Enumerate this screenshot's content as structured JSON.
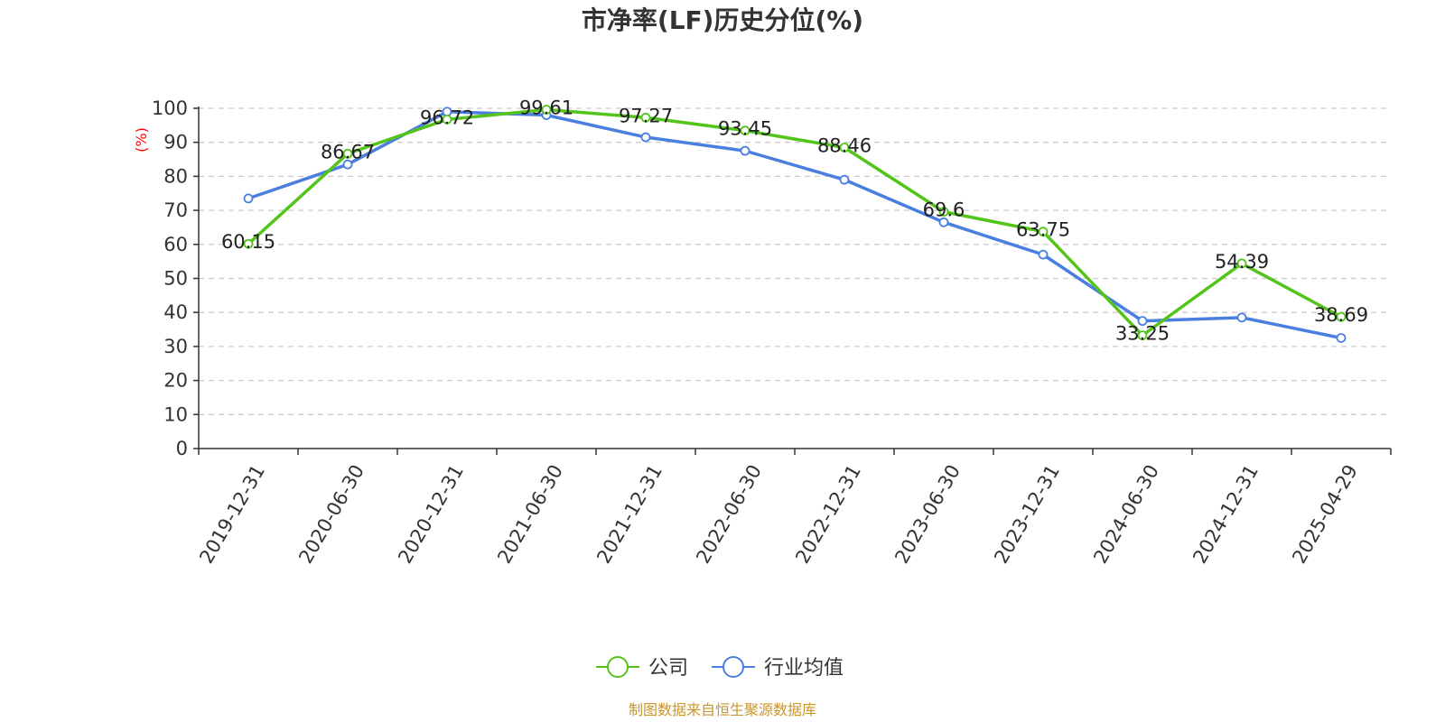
{
  "colors": {
    "company": "#52c41a",
    "industry": "#4a7fe0",
    "grid": "#cccccc",
    "axis": "#333333",
    "ylabel": "#ff0000",
    "source": "#c8962a"
  },
  "source_text": "制图数据来自恒生聚源数据库",
  "chart_data": {
    "type": "line",
    "title": "市净率(LF)历史分位(%)",
    "ylabel": "(%)",
    "xlabel": "",
    "ylim": [
      0,
      100
    ],
    "yticks": [
      0,
      10,
      20,
      30,
      40,
      50,
      60,
      70,
      80,
      90,
      100
    ],
    "grid": true,
    "legend_position": "bottom-center",
    "categories": [
      "2019-12-31",
      "2020-06-30",
      "2020-12-31",
      "2021-06-30",
      "2021-12-31",
      "2022-06-30",
      "2022-12-31",
      "2023-06-30",
      "2023-12-31",
      "2024-06-30",
      "2024-12-31",
      "2025-04-29"
    ],
    "series": [
      {
        "name": "公司",
        "color": "#52c41a",
        "values": [
          60.15,
          86.67,
          96.72,
          99.61,
          97.27,
          93.45,
          88.46,
          69.6,
          63.75,
          33.25,
          54.39,
          38.69
        ],
        "labels": [
          "60.15",
          "86.67",
          "96.72",
          "99.61",
          "97.27",
          "93.45",
          "88.46",
          "69.6",
          "63.75",
          "33.25",
          "54.39",
          "38.69"
        ]
      },
      {
        "name": "行业均值",
        "color": "#4a7fe0",
        "values": [
          73.5,
          83.5,
          99.0,
          98.0,
          91.5,
          87.5,
          79.0,
          66.5,
          57.0,
          37.5,
          38.5,
          32.5
        ]
      }
    ]
  }
}
